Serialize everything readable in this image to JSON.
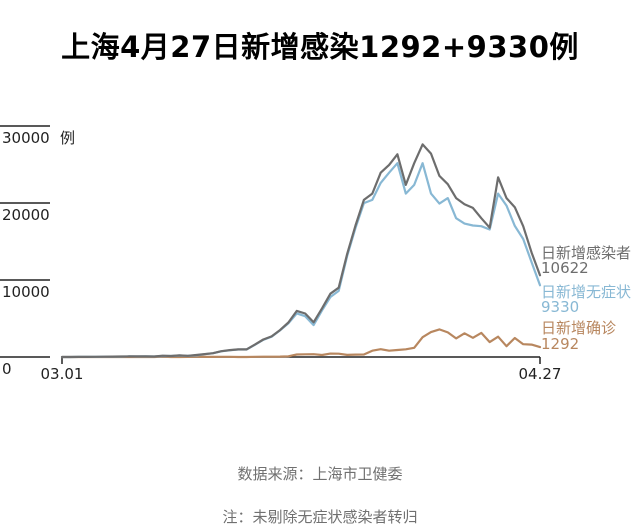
{
  "title": "上海4月27日新增感染1292+9330例",
  "source": "数据来源：上海市卫健委",
  "footnote": "注：未剔除无症状感染者转归",
  "colors": {
    "total": "#6d6d6d",
    "asymptomatic": "#88b8d4",
    "confirmed": "#b8875f",
    "axis": "#222222"
  },
  "chart_data": {
    "type": "line",
    "ylim": [
      0,
      30000
    ],
    "yticks": [
      "0",
      "10000",
      "20000",
      "30000"
    ],
    "yunit": "例",
    "xtick_labels": [
      "03.01",
      "04.27"
    ],
    "x": [
      "03.01",
      "03.02",
      "03.03",
      "03.04",
      "03.05",
      "03.06",
      "03.07",
      "03.08",
      "03.09",
      "03.10",
      "03.11",
      "03.12",
      "03.13",
      "03.14",
      "03.15",
      "03.16",
      "03.17",
      "03.18",
      "03.19",
      "03.20",
      "03.21",
      "03.22",
      "03.23",
      "03.24",
      "03.25",
      "03.26",
      "03.27",
      "03.28",
      "03.29",
      "03.30",
      "03.31",
      "04.01",
      "04.02",
      "04.03",
      "04.04",
      "04.05",
      "04.06",
      "04.07",
      "04.08",
      "04.09",
      "04.10",
      "04.11",
      "04.12",
      "04.13",
      "04.14",
      "04.15",
      "04.16",
      "04.17",
      "04.18",
      "04.19",
      "04.20",
      "04.21",
      "04.22",
      "04.23",
      "04.24",
      "04.25",
      "04.26",
      "04.27"
    ],
    "series": [
      {
        "name": "日新增感染者",
        "color": "#6d6d6d",
        "end_value": "10622",
        "values": [
          2,
          5,
          19,
          16,
          28,
          45,
          54,
          62,
          81,
          76,
          83,
          65,
          169,
          130,
          202,
          158,
          260,
          374,
          492,
          758,
          896,
          981,
          983,
          1609,
          2269,
          2676,
          3500,
          4477,
          5982,
          5653,
          4502,
          6311,
          8226,
          9006,
          13354,
          17077,
          20398,
          21222,
          23937,
          24944,
          26330,
          22348,
          25173,
          27605,
          26421,
          23513,
          22448,
          20634,
          19831,
          19369,
          18022,
          16787,
          23342,
          20634,
          19455,
          16983,
          13562,
          10622
        ]
      },
      {
        "name": "日新增无症状",
        "color": "#88b8d4",
        "end_value": "9330",
        "values": [
          1,
          3,
          14,
          13,
          28,
          40,
          50,
          58,
          76,
          64,
          78,
          64,
          128,
          128,
          197,
          150,
          203,
          366,
          479,
          734,
          865,
          977,
          979,
          1580,
          2231,
          2631,
          3450,
          4381,
          5656,
          5298,
          4144,
          6051,
          7788,
          8581,
          13086,
          16766,
          19982,
          20398,
          22609,
          23937,
          25173,
          21222,
          22348,
          25173,
          21222,
          19923,
          20634,
          18022,
          17327,
          17077,
          16983,
          16563,
          21222,
          19659,
          17027,
          15319,
          12309,
          9330
        ]
      },
      {
        "name": "日新增确诊",
        "color": "#b8875f",
        "end_value": "1292",
        "values": [
          1,
          2,
          5,
          3,
          0,
          5,
          4,
          4,
          5,
          12,
          5,
          1,
          41,
          2,
          5,
          8,
          57,
          8,
          13,
          24,
          31,
          4,
          4,
          29,
          38,
          45,
          50,
          96,
          326,
          355,
          358,
          260,
          438,
          425,
          268,
          311,
          322,
          824,
          1015,
          824,
          914,
          994,
          1189,
          2573,
          3238,
          3590,
          3200,
          2417,
          3084,
          2494,
          3129,
          1931,
          2634,
          1401,
          2472,
          1661,
          1606,
          1292
        ]
      }
    ]
  }
}
